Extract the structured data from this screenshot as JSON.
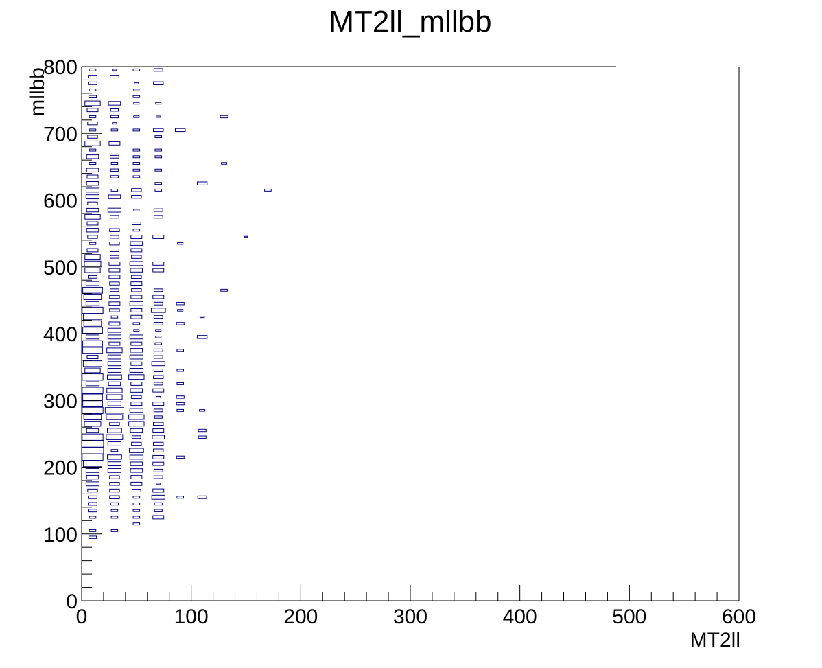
{
  "chart_data": {
    "type": "heatmap",
    "style": "box",
    "title": "MT2ll_mllbb",
    "xlabel": "MT2ll",
    "ylabel": "mllbb",
    "xlim": [
      0,
      600
    ],
    "ylim": [
      0,
      800
    ],
    "x_ticks": [
      "0",
      "100",
      "200",
      "300",
      "400",
      "500",
      "600"
    ],
    "y_ticks": [
      "0",
      "100",
      "200",
      "300",
      "400",
      "500",
      "600",
      "700",
      "800"
    ],
    "x_tick_values": [
      0,
      100,
      200,
      300,
      400,
      500,
      600
    ],
    "y_tick_values": [
      0,
      100,
      200,
      300,
      400,
      500,
      600,
      700,
      800
    ],
    "bin_width_x": 20,
    "bin_width_y": 10,
    "box_color": "#000080",
    "frame_color": "#000000",
    "bins": [
      [
        10,
        95,
        0.35
      ],
      [
        10,
        105,
        0.3
      ],
      [
        10,
        125,
        0.3
      ],
      [
        10,
        135,
        0.4
      ],
      [
        10,
        145,
        0.4
      ],
      [
        10,
        155,
        0.4
      ],
      [
        10,
        165,
        0.45
      ],
      [
        10,
        175,
        0.6
      ],
      [
        10,
        185,
        0.55
      ],
      [
        10,
        195,
        0.6
      ],
      [
        10,
        205,
        0.85
      ],
      [
        10,
        215,
        0.95
      ],
      [
        10,
        225,
        1.0
      ],
      [
        10,
        235,
        1.0
      ],
      [
        10,
        245,
        0.95
      ],
      [
        10,
        255,
        0.55
      ],
      [
        10,
        265,
        0.75
      ],
      [
        10,
        275,
        0.8
      ],
      [
        10,
        285,
        0.95
      ],
      [
        10,
        295,
        0.9
      ],
      [
        10,
        305,
        0.9
      ],
      [
        10,
        315,
        0.95
      ],
      [
        10,
        325,
        0.6
      ],
      [
        10,
        335,
        0.95
      ],
      [
        10,
        345,
        0.7
      ],
      [
        10,
        355,
        0.85
      ],
      [
        10,
        365,
        0.5
      ],
      [
        10,
        375,
        0.9
      ],
      [
        10,
        385,
        0.9
      ],
      [
        10,
        395,
        0.6
      ],
      [
        10,
        405,
        0.9
      ],
      [
        10,
        415,
        0.8
      ],
      [
        10,
        425,
        0.85
      ],
      [
        10,
        435,
        0.95
      ],
      [
        10,
        445,
        0.6
      ],
      [
        10,
        455,
        0.8
      ],
      [
        10,
        465,
        0.9
      ],
      [
        10,
        475,
        0.6
      ],
      [
        10,
        485,
        0.4
      ],
      [
        10,
        495,
        0.7
      ],
      [
        10,
        505,
        0.75
      ],
      [
        10,
        515,
        0.7
      ],
      [
        10,
        525,
        0.5
      ],
      [
        10,
        535,
        0.3
      ],
      [
        10,
        545,
        0.45
      ],
      [
        10,
        555,
        0.55
      ],
      [
        10,
        565,
        0.5
      ],
      [
        10,
        575,
        0.7
      ],
      [
        10,
        585,
        0.55
      ],
      [
        10,
        595,
        0.45
      ],
      [
        10,
        605,
        0.6
      ],
      [
        10,
        615,
        0.6
      ],
      [
        10,
        625,
        0.55
      ],
      [
        10,
        635,
        0.5
      ],
      [
        10,
        645,
        0.55
      ],
      [
        10,
        655,
        0.3
      ],
      [
        10,
        665,
        0.55
      ],
      [
        10,
        675,
        0.3
      ],
      [
        10,
        685,
        0.7
      ],
      [
        10,
        695,
        0.45
      ],
      [
        10,
        705,
        0.3
      ],
      [
        10,
        715,
        0.45
      ],
      [
        10,
        725,
        0.3
      ],
      [
        10,
        735,
        0.5
      ],
      [
        10,
        745,
        0.7
      ],
      [
        10,
        755,
        0.35
      ],
      [
        10,
        765,
        0.3
      ],
      [
        10,
        775,
        0.4
      ],
      [
        10,
        785,
        0.4
      ],
      [
        10,
        795,
        0.3
      ],
      [
        30,
        105,
        0.3
      ],
      [
        30,
        125,
        0.3
      ],
      [
        30,
        135,
        0.3
      ],
      [
        30,
        145,
        0.35
      ],
      [
        30,
        155,
        0.45
      ],
      [
        30,
        165,
        0.45
      ],
      [
        30,
        175,
        0.45
      ],
      [
        30,
        185,
        0.45
      ],
      [
        30,
        195,
        0.6
      ],
      [
        30,
        205,
        0.6
      ],
      [
        30,
        215,
        0.65
      ],
      [
        30,
        225,
        0.3
      ],
      [
        30,
        235,
        0.6
      ],
      [
        30,
        245,
        0.75
      ],
      [
        30,
        255,
        0.65
      ],
      [
        30,
        265,
        0.45
      ],
      [
        30,
        275,
        0.75
      ],
      [
        30,
        285,
        0.85
      ],
      [
        30,
        295,
        0.6
      ],
      [
        30,
        305,
        0.7
      ],
      [
        30,
        315,
        0.7
      ],
      [
        30,
        325,
        0.55
      ],
      [
        30,
        335,
        0.65
      ],
      [
        30,
        345,
        0.6
      ],
      [
        30,
        355,
        0.6
      ],
      [
        30,
        365,
        0.6
      ],
      [
        30,
        375,
        0.7
      ],
      [
        30,
        385,
        0.5
      ],
      [
        30,
        395,
        0.6
      ],
      [
        30,
        405,
        0.6
      ],
      [
        30,
        415,
        0.5
      ],
      [
        30,
        425,
        0.3
      ],
      [
        30,
        435,
        0.45
      ],
      [
        30,
        445,
        0.5
      ],
      [
        30,
        455,
        0.45
      ],
      [
        30,
        465,
        0.4
      ],
      [
        30,
        475,
        0.45
      ],
      [
        30,
        485,
        0.5
      ],
      [
        30,
        495,
        0.5
      ],
      [
        30,
        505,
        0.5
      ],
      [
        30,
        515,
        0.4
      ],
      [
        30,
        525,
        0.4
      ],
      [
        30,
        535,
        0.45
      ],
      [
        30,
        545,
        0.4
      ],
      [
        30,
        555,
        0.45
      ],
      [
        30,
        575,
        0.4
      ],
      [
        30,
        585,
        0.6
      ],
      [
        30,
        605,
        0.55
      ],
      [
        30,
        615,
        0.3
      ],
      [
        30,
        635,
        0.35
      ],
      [
        30,
        645,
        0.35
      ],
      [
        30,
        655,
        0.3
      ],
      [
        30,
        665,
        0.4
      ],
      [
        30,
        685,
        0.5
      ],
      [
        30,
        705,
        0.3
      ],
      [
        30,
        715,
        0.2
      ],
      [
        30,
        725,
        0.35
      ],
      [
        30,
        735,
        0.35
      ],
      [
        30,
        745,
        0.55
      ],
      [
        30,
        785,
        0.4
      ],
      [
        30,
        795,
        0.2
      ],
      [
        50,
        115,
        0.3
      ],
      [
        50,
        125,
        0.3
      ],
      [
        50,
        135,
        0.3
      ],
      [
        50,
        145,
        0.3
      ],
      [
        50,
        155,
        0.3
      ],
      [
        50,
        165,
        0.4
      ],
      [
        50,
        175,
        0.5
      ],
      [
        50,
        185,
        0.5
      ],
      [
        50,
        195,
        0.55
      ],
      [
        50,
        205,
        0.55
      ],
      [
        50,
        215,
        0.6
      ],
      [
        50,
        225,
        0.65
      ],
      [
        50,
        235,
        0.45
      ],
      [
        50,
        245,
        0.4
      ],
      [
        50,
        255,
        0.55
      ],
      [
        50,
        265,
        0.7
      ],
      [
        50,
        275,
        0.7
      ],
      [
        50,
        285,
        0.6
      ],
      [
        50,
        295,
        0.5
      ],
      [
        50,
        305,
        0.45
      ],
      [
        50,
        315,
        0.55
      ],
      [
        50,
        325,
        0.5
      ],
      [
        50,
        335,
        0.7
      ],
      [
        50,
        345,
        0.6
      ],
      [
        50,
        355,
        0.5
      ],
      [
        50,
        365,
        0.6
      ],
      [
        50,
        375,
        0.55
      ],
      [
        50,
        385,
        0.5
      ],
      [
        50,
        395,
        0.6
      ],
      [
        50,
        405,
        0.25
      ],
      [
        50,
        415,
        0.3
      ],
      [
        50,
        425,
        0.5
      ],
      [
        50,
        435,
        0.5
      ],
      [
        50,
        445,
        0.6
      ],
      [
        50,
        455,
        0.5
      ],
      [
        50,
        465,
        0.45
      ],
      [
        50,
        475,
        0.5
      ],
      [
        50,
        485,
        0.45
      ],
      [
        50,
        495,
        0.55
      ],
      [
        50,
        505,
        0.6
      ],
      [
        50,
        515,
        0.45
      ],
      [
        50,
        525,
        0.5
      ],
      [
        50,
        535,
        0.55
      ],
      [
        50,
        545,
        0.5
      ],
      [
        50,
        555,
        0.3
      ],
      [
        50,
        565,
        0.4
      ],
      [
        50,
        585,
        0.25
      ],
      [
        50,
        605,
        0.45
      ],
      [
        50,
        615,
        0.45
      ],
      [
        50,
        635,
        0.3
      ],
      [
        50,
        645,
        0.3
      ],
      [
        50,
        655,
        0.3
      ],
      [
        50,
        665,
        0.3
      ],
      [
        50,
        675,
        0.3
      ],
      [
        50,
        705,
        0.3
      ],
      [
        50,
        725,
        0.25
      ],
      [
        50,
        745,
        0.25
      ],
      [
        50,
        755,
        0.3
      ],
      [
        50,
        765,
        0.25
      ],
      [
        50,
        775,
        0.2
      ],
      [
        50,
        795,
        0.3
      ],
      [
        70,
        125,
        0.5
      ],
      [
        70,
        135,
        0.35
      ],
      [
        70,
        145,
        0.35
      ],
      [
        70,
        155,
        0.6
      ],
      [
        70,
        165,
        0.5
      ],
      [
        70,
        175,
        0.2
      ],
      [
        70,
        185,
        0.4
      ],
      [
        70,
        195,
        0.4
      ],
      [
        70,
        205,
        0.5
      ],
      [
        70,
        215,
        0.5
      ],
      [
        70,
        225,
        0.45
      ],
      [
        70,
        235,
        0.45
      ],
      [
        70,
        245,
        0.55
      ],
      [
        70,
        255,
        0.5
      ],
      [
        70,
        265,
        0.45
      ],
      [
        70,
        275,
        0.35
      ],
      [
        70,
        285,
        0.4
      ],
      [
        70,
        295,
        0.5
      ],
      [
        70,
        305,
        0.2
      ],
      [
        70,
        315,
        0.5
      ],
      [
        70,
        325,
        0.4
      ],
      [
        70,
        335,
        0.45
      ],
      [
        70,
        345,
        0.4
      ],
      [
        70,
        355,
        0.6
      ],
      [
        70,
        365,
        0.4
      ],
      [
        70,
        375,
        0.4
      ],
      [
        70,
        385,
        0.3
      ],
      [
        70,
        395,
        0.25
      ],
      [
        70,
        405,
        0.25
      ],
      [
        70,
        415,
        0.4
      ],
      [
        70,
        425,
        0.4
      ],
      [
        70,
        435,
        0.65
      ],
      [
        70,
        445,
        0.4
      ],
      [
        70,
        455,
        0.5
      ],
      [
        70,
        465,
        0.4
      ],
      [
        70,
        495,
        0.5
      ],
      [
        70,
        505,
        0.5
      ],
      [
        70,
        545,
        0.5
      ],
      [
        70,
        575,
        0.4
      ],
      [
        70,
        585,
        0.4
      ],
      [
        70,
        615,
        0.3
      ],
      [
        70,
        625,
        0.3
      ],
      [
        70,
        645,
        0.3
      ],
      [
        70,
        665,
        0.3
      ],
      [
        70,
        675,
        0.3
      ],
      [
        70,
        695,
        0.3
      ],
      [
        70,
        705,
        0.45
      ],
      [
        70,
        725,
        0.2
      ],
      [
        70,
        745,
        0.25
      ],
      [
        70,
        775,
        0.45
      ],
      [
        70,
        795,
        0.4
      ],
      [
        90,
        155,
        0.3
      ],
      [
        90,
        215,
        0.35
      ],
      [
        90,
        285,
        0.3
      ],
      [
        90,
        295,
        0.35
      ],
      [
        90,
        305,
        0.35
      ],
      [
        90,
        325,
        0.3
      ],
      [
        90,
        345,
        0.3
      ],
      [
        90,
        375,
        0.3
      ],
      [
        90,
        415,
        0.35
      ],
      [
        90,
        435,
        0.25
      ],
      [
        90,
        445,
        0.35
      ],
      [
        90,
        535,
        0.25
      ],
      [
        90,
        705,
        0.45
      ],
      [
        110,
        155,
        0.4
      ],
      [
        110,
        245,
        0.35
      ],
      [
        110,
        255,
        0.35
      ],
      [
        110,
        285,
        0.25
      ],
      [
        110,
        395,
        0.45
      ],
      [
        110,
        425,
        0.2
      ],
      [
        110,
        625,
        0.45
      ],
      [
        130,
        465,
        0.3
      ],
      [
        130,
        655,
        0.25
      ],
      [
        130,
        725,
        0.35
      ],
      [
        150,
        545,
        0.15
      ],
      [
        170,
        615,
        0.3
      ]
    ]
  }
}
